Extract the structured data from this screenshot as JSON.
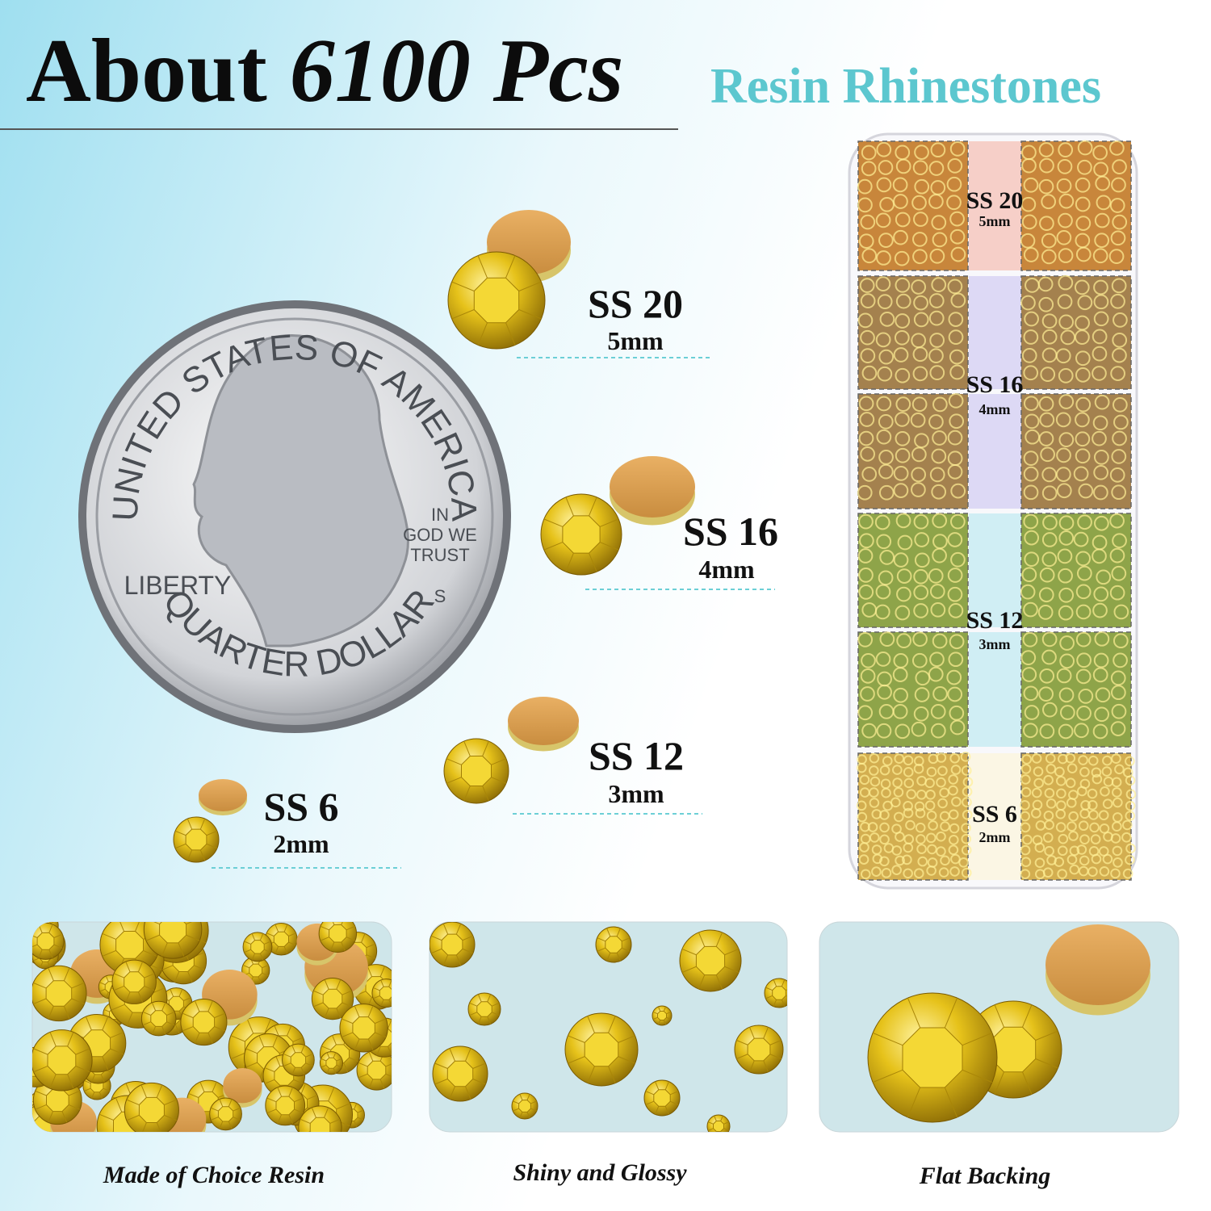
{
  "header": {
    "title_lead": "About",
    "title_count": "6100 Pcs",
    "subtitle": "Resin Rhinestones"
  },
  "sizes": [
    {
      "size": "SS 20",
      "mm": "5mm"
    },
    {
      "size": "SS 16",
      "mm": "4mm"
    },
    {
      "size": "SS 12",
      "mm": "3mm"
    },
    {
      "size": "SS 6",
      "mm": "2mm"
    }
  ],
  "coin": {
    "top": "UNITED STATES OF AMERICA",
    "left": "LIBERTY",
    "motto": [
      "IN",
      "GOD WE",
      "TRUST"
    ],
    "mint": "S",
    "bottom": "QUARTER DOLLAR"
  },
  "captions": [
    "Made of Choice Resin",
    "Shiny and Glossy",
    "Flat Backing"
  ]
}
